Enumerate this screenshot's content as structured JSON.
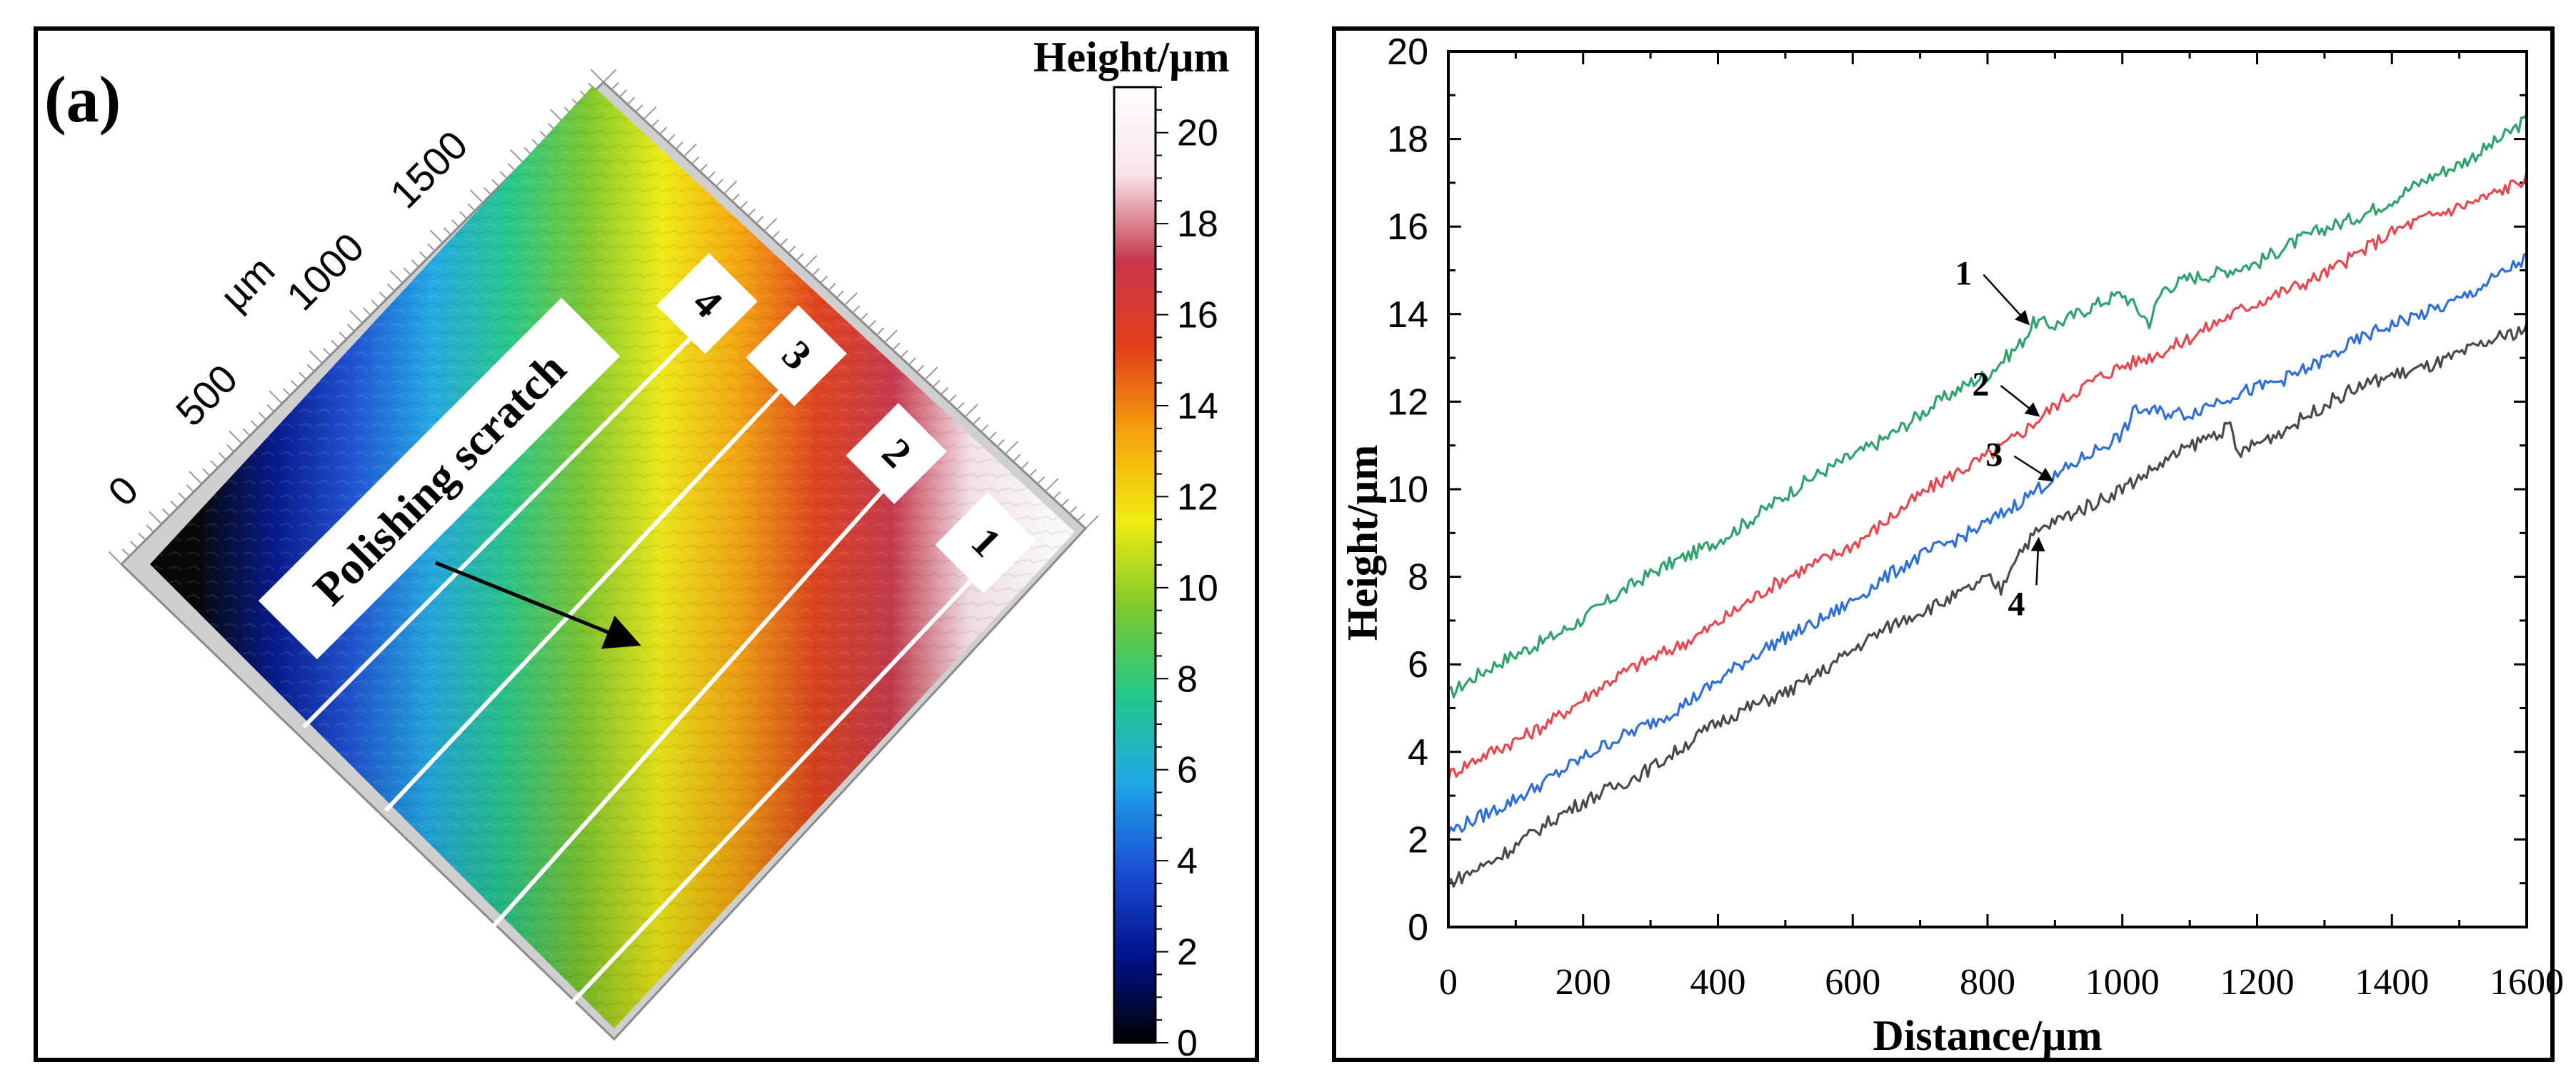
{
  "panel_a": {
    "label": "(a)",
    "annotation": "Polishing scratch",
    "axis_unit": "µm",
    "axis_ticks": [
      "0",
      "500",
      "1000",
      "1500"
    ],
    "profile_labels": [
      "1",
      "2",
      "3",
      "4"
    ],
    "colorbar": {
      "title": "Height/µm",
      "min": 0,
      "max": 21,
      "ticks": [
        "0",
        "2",
        "4",
        "6",
        "8",
        "10",
        "12",
        "14",
        "16",
        "18",
        "20"
      ],
      "colors": [
        "#000000",
        "#00138c",
        "#1b4fd6",
        "#1fa8e6",
        "#23c88a",
        "#7cc92c",
        "#f0ec12",
        "#f6a50c",
        "#e2401a",
        "#c7364a",
        "#f7e4ea",
        "#ffffff"
      ]
    }
  },
  "chart_data": {
    "type": "line",
    "xlabel": "Distance/µm",
    "ylabel": "Height/µm",
    "xlim": [
      0,
      1600
    ],
    "ylim": [
      0,
      20
    ],
    "xticks": [
      "0",
      "200",
      "400",
      "600",
      "800",
      "1000",
      "1200",
      "1400",
      "1600"
    ],
    "yticks": [
      "0",
      "2",
      "4",
      "6",
      "8",
      "10",
      "12",
      "14",
      "16",
      "18",
      "20"
    ],
    "series": [
      {
        "name": "1",
        "color": "#2ea36b",
        "x": [
          0,
          100,
          200,
          300,
          400,
          500,
          600,
          700,
          800,
          850,
          870,
          900,
          1000,
          1040,
          1060,
          1100,
          1200,
          1300,
          1400,
          1500,
          1600
        ],
        "y": [
          5.3,
          6.2,
          7.1,
          8.0,
          8.9,
          9.8,
          10.8,
          11.7,
          12.6,
          13.4,
          13.9,
          13.8,
          14.4,
          13.8,
          14.6,
          14.9,
          15.1,
          16.0,
          16.6,
          17.4,
          18.5
        ]
      },
      {
        "name": "2",
        "color": "#e8474f",
        "x": [
          0,
          100,
          200,
          300,
          400,
          500,
          600,
          700,
          800,
          900,
          1000,
          1100,
          1200,
          1300,
          1400,
          1500,
          1600
        ],
        "y": [
          3.4,
          4.3,
          5.2,
          6.1,
          7.0,
          7.9,
          8.8,
          9.8,
          10.8,
          11.9,
          12.8,
          13.5,
          14.2,
          15.0,
          15.8,
          16.5,
          17.1
        ]
      },
      {
        "name": "3",
        "color": "#2e6fd8",
        "x": [
          0,
          100,
          200,
          300,
          400,
          500,
          600,
          700,
          800,
          900,
          1000,
          1020,
          1100,
          1200,
          1300,
          1400,
          1500,
          1600
        ],
        "y": [
          2.1,
          3.0,
          3.8,
          4.7,
          5.6,
          6.6,
          7.5,
          8.4,
          9.3,
          10.2,
          11.3,
          11.9,
          11.7,
          12.3,
          13.0,
          13.7,
          14.4,
          15.2
        ]
      },
      {
        "name": "4",
        "color": "#4a4a4a",
        "x": [
          0,
          100,
          200,
          300,
          400,
          500,
          600,
          700,
          800,
          820,
          840,
          870,
          900,
          1000,
          1100,
          1160,
          1170,
          1200,
          1300,
          1400,
          1500,
          1600
        ],
        "y": [
          1.0,
          1.9,
          2.8,
          3.7,
          4.6,
          5.4,
          6.3,
          7.2,
          8.0,
          7.7,
          8.4,
          8.9,
          9.2,
          10.1,
          10.9,
          11.4,
          10.8,
          11.1,
          11.9,
          12.6,
          13.1,
          13.6
        ]
      }
    ],
    "annotations": [
      {
        "text": "1",
        "series": "1",
        "x": 865
      },
      {
        "text": "2",
        "series": "2",
        "x": 880
      },
      {
        "text": "3",
        "series": "3",
        "x": 900
      },
      {
        "text": "4",
        "series": "4",
        "x": 880
      }
    ]
  }
}
